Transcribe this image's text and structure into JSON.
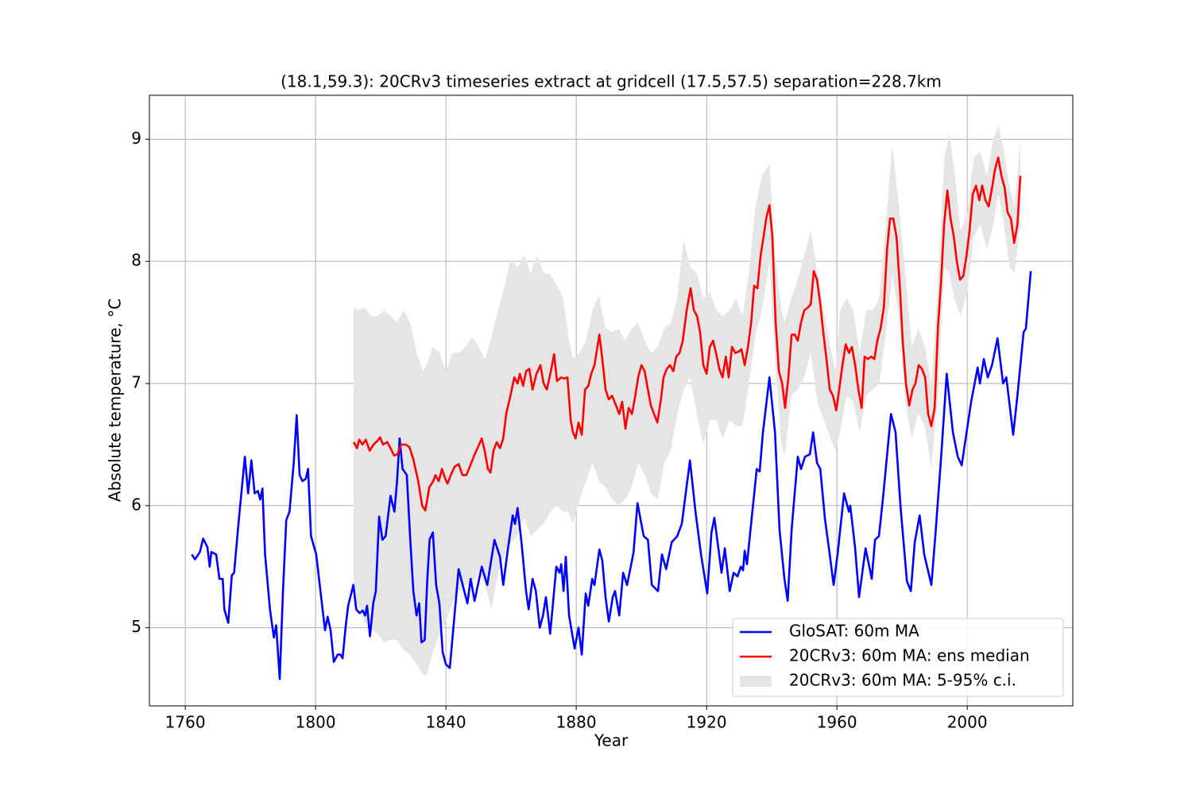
{
  "chart_data": {
    "type": "line",
    "title": "(18.1,59.3): 20CRv3 timeseries extract at gridcell (17.5,57.5) separation=228.7km",
    "xlabel": "Year",
    "ylabel": "Absolute temperature, °C",
    "xlim": [
      1749,
      2032.4
    ],
    "ylim": [
      4.36,
      9.36
    ],
    "xticks": [
      1760,
      1800,
      1840,
      1880,
      1920,
      1960,
      2000
    ],
    "yticks": [
      5,
      6,
      7,
      8,
      9
    ],
    "grid": true,
    "legend": "lower right",
    "series": [
      {
        "name": "GloSAT: 60m MA",
        "color": "#0000ff",
        "x": [
          1762,
          1763,
          1764.5,
          1765.5,
          1766.8,
          1767.5,
          1768,
          1769.5,
          1770.5,
          1771.5,
          1772,
          1773.2,
          1774.3,
          1775,
          1776.5,
          1778.3,
          1779.3,
          1780.3,
          1781.3,
          1782.3,
          1783,
          1783.7,
          1784.5,
          1786,
          1787.2,
          1787.9,
          1789,
          1790,
          1791,
          1792,
          1793.3,
          1794.2,
          1795.1,
          1796,
          1797,
          1797.7,
          1798.6,
          1800.2,
          1801.5,
          1802.9,
          1803.7,
          1804.6,
          1805.6,
          1806.8,
          1807.6,
          1808.3,
          1809.2,
          1810,
          1811.6,
          1812.5,
          1813.5,
          1814.5,
          1815.2,
          1815.8,
          1816.7,
          1817.7,
          1818.5,
          1819.5,
          1820.5,
          1821.5,
          1823,
          1824.2,
          1825,
          1825.8,
          1826.7,
          1828,
          1829,
          1830,
          1831,
          1831.8,
          1832.5,
          1833.5,
          1834.3,
          1835,
          1836,
          1837,
          1838,
          1839,
          1840,
          1841.2,
          1843.9,
          1846.6,
          1847.6,
          1848.8,
          1851.0,
          1852.7,
          1854.9,
          1856.6,
          1857.6,
          1858.8,
          1860.5,
          1861.2,
          1862.0,
          1863.2,
          1864.6,
          1865.4,
          1866.6,
          1867.6,
          1868.8,
          1869.8,
          1870.7,
          1872.0,
          1873.9,
          1874.9,
          1875.4,
          1876.1,
          1876.8,
          1877.8,
          1879.5,
          1880.7,
          1881.7,
          1882.9,
          1883.7,
          1884.9,
          1885.6,
          1887.1,
          1888.0,
          1889.0,
          1890.0,
          1891.2,
          1891.9,
          1893.2,
          1894.4,
          1895.6,
          1897.1,
          1897.6,
          1898.8,
          1900.7,
          1902.0,
          1903.2,
          1905.1,
          1906.3,
          1907.6,
          1909.3,
          1911.0,
          1912.4,
          1914.9,
          1916.6,
          1918.3,
          1920.2,
          1921.5,
          1922.4,
          1924.6,
          1925.6,
          1927.1,
          1928.3,
          1929.5,
          1930.5,
          1931.2,
          1931.7,
          1932.4,
          1935.4,
          1936.3,
          1937.3,
          1939.3,
          1941.0,
          1942.4,
          1943.9,
          1944.9,
          1946.1,
          1948.0,
          1949.0,
          1950.2,
          1951.7,
          1952.7,
          1953.9,
          1954.9,
          1956.3,
          1957.8,
          1959.0,
          1960.2,
          1962.2,
          1963.7,
          1964.1,
          1965.6,
          1966.8,
          1968.8,
          1970.7,
          1971.7,
          1972.9,
          1974.1,
          1976.6,
          1978.0,
          1979.5,
          1981.5,
          1982.7,
          1983.9,
          1985.4,
          1986.8,
          1989.0,
          1990.2,
          1992.0,
          1993.7,
          1995.6,
          1997.1,
          1998.3,
          2001.2,
          2003.2,
          2003.9,
          2005.1,
          2006.3,
          2007.6,
          2009.3,
          2011.0,
          2012.0,
          2014.1,
          2015.4,
          2017.3,
          2018.0,
          2019.5
        ],
        "values": [
          5.6,
          5.56,
          5.62,
          5.73,
          5.66,
          5.5,
          5.62,
          5.6,
          5.4,
          5.4,
          5.15,
          5.04,
          5.43,
          5.45,
          5.9,
          6.4,
          6.1,
          6.37,
          6.1,
          6.12,
          6.05,
          6.14,
          5.6,
          5.15,
          4.92,
          5.02,
          4.58,
          5.3,
          5.88,
          5.95,
          6.35,
          6.74,
          6.25,
          6.2,
          6.22,
          6.3,
          5.75,
          5.6,
          5.3,
          4.98,
          5.09,
          4.98,
          4.72,
          4.78,
          4.78,
          4.75,
          5.0,
          5.18,
          5.35,
          5.15,
          5.12,
          5.14,
          5.1,
          5.18,
          4.93,
          5.2,
          5.3,
          5.91,
          5.72,
          5.75,
          6.08,
          5.95,
          6.2,
          6.55,
          6.3,
          6.25,
          5.75,
          5.3,
          5.1,
          5.2,
          4.88,
          4.9,
          5.4,
          5.72,
          5.78,
          5.35,
          5.2,
          4.8,
          4.7,
          4.67,
          5.48,
          5.2,
          5.4,
          5.22,
          5.5,
          5.35,
          5.72,
          5.58,
          5.35,
          5.6,
          5.92,
          5.85,
          5.98,
          5.7,
          5.3,
          5.15,
          5.4,
          5.3,
          5.0,
          5.1,
          5.25,
          4.95,
          5.5,
          5.45,
          5.52,
          5.3,
          5.58,
          5.1,
          4.83,
          5.0,
          4.78,
          5.28,
          5.18,
          5.4,
          5.35,
          5.64,
          5.55,
          5.25,
          5.05,
          5.25,
          5.3,
          5.1,
          5.45,
          5.35,
          5.55,
          5.62,
          6.02,
          5.75,
          5.72,
          5.35,
          5.3,
          5.6,
          5.48,
          5.7,
          5.75,
          5.85,
          6.37,
          5.95,
          5.6,
          5.28,
          5.78,
          5.9,
          5.45,
          5.65,
          5.3,
          5.45,
          5.42,
          5.5,
          5.47,
          5.63,
          5.52,
          6.3,
          6.28,
          6.6,
          7.05,
          6.6,
          5.8,
          5.4,
          5.22,
          5.8,
          6.4,
          6.3,
          6.4,
          6.42,
          6.6,
          6.35,
          6.3,
          5.9,
          5.6,
          5.35,
          5.6,
          6.1,
          5.95,
          6.0,
          5.65,
          5.25,
          5.65,
          5.4,
          5.72,
          5.75,
          6.05,
          6.75,
          6.6,
          6.0,
          5.38,
          5.3,
          5.7,
          5.92,
          5.6,
          5.35,
          5.75,
          6.4,
          7.08,
          6.6,
          6.4,
          6.33,
          6.85,
          7.13,
          7.0,
          7.2,
          7.05,
          7.15,
          7.37,
          7.0,
          7.05,
          6.58,
          6.9,
          7.42,
          7.45,
          7.92
        ]
      },
      {
        "name": "20CRv3: 60m MA: ens median",
        "color": "#ff0000",
        "x": [
          1811.7,
          1812.7,
          1813.4,
          1814.4,
          1815.4,
          1816.6,
          1817.8,
          1819.0,
          1819.8,
          1820.7,
          1822.0,
          1823.2,
          1824.1,
          1825.1,
          1826.3,
          1827.6,
          1828.8,
          1830.0,
          1831.5,
          1832.7,
          1833.7,
          1834.9,
          1836.1,
          1836.8,
          1837.8,
          1838.8,
          1839.8,
          1840.5,
          1841.5,
          1842.7,
          1843.9,
          1845.1,
          1846.3,
          1847.8,
          1849.0,
          1850.2,
          1851.0,
          1851.9,
          1852.9,
          1853.7,
          1854.6,
          1855.6,
          1856.6,
          1857.6,
          1858.5,
          1859.8,
          1861.0,
          1862.0,
          1862.7,
          1863.7,
          1864.6,
          1865.6,
          1866.6,
          1867.8,
          1869.0,
          1870.0,
          1871.0,
          1872.2,
          1873.2,
          1874.1,
          1875.4,
          1876.3,
          1877.3,
          1878.3,
          1879.0,
          1879.8,
          1880.7,
          1881.7,
          1882.7,
          1883.7,
          1884.6,
          1885.6,
          1887.1,
          1888.0,
          1889.0,
          1890.0,
          1891.0,
          1892.2,
          1893.2,
          1894.1,
          1895.1,
          1896.1,
          1897.1,
          1898.0,
          1899.0,
          1900.0,
          1901.0,
          1902.0,
          1902.9,
          1903.9,
          1904.9,
          1905.9,
          1906.8,
          1907.8,
          1908.8,
          1909.8,
          1910.7,
          1911.7,
          1912.7,
          1913.9,
          1915.1,
          1916.1,
          1917.1,
          1918.0,
          1919.0,
          1920.0,
          1921.0,
          1922.0,
          1922.9,
          1923.9,
          1924.9,
          1925.9,
          1926.8,
          1927.8,
          1928.8,
          1929.8,
          1930.7,
          1931.7,
          1932.7,
          1933.7,
          1934.6,
          1935.6,
          1936.6,
          1937.6,
          1938.3,
          1939.3,
          1940.2,
          1941.2,
          1942.2,
          1943.2,
          1944.1,
          1945.1,
          1946.1,
          1947.1,
          1948.0,
          1949.0,
          1950.0,
          1951.0,
          1952.0,
          1952.9,
          1953.9,
          1954.9,
          1955.9,
          1956.8,
          1957.8,
          1958.8,
          1959.8,
          1960.7,
          1961.7,
          1962.7,
          1963.7,
          1964.6,
          1965.6,
          1966.6,
          1967.6,
          1968.5,
          1969.5,
          1970.5,
          1971.5,
          1972.4,
          1973.4,
          1974.4,
          1975.4,
          1976.3,
          1977.3,
          1978.3,
          1979.3,
          1980.2,
          1981.2,
          1982.2,
          1983.2,
          1984.1,
          1985.1,
          1986.1,
          1987.1,
          1988.0,
          1989.0,
          1990.0,
          1991.0,
          1992.0,
          1992.9,
          1993.9,
          1994.9,
          1995.9,
          1996.8,
          1997.8,
          1998.8,
          1999.8,
          2000.7,
          2001.7,
          2002.7,
          2003.7,
          2004.6,
          2005.6,
          2006.6,
          2007.6,
          2008.5,
          2009.5,
          2010.5,
          2011.5,
          2012.4,
          2013.4,
          2014.4,
          2015.4,
          2016.3
        ],
        "values": [
          6.52,
          6.47,
          6.54,
          6.5,
          6.54,
          6.45,
          6.5,
          6.53,
          6.56,
          6.5,
          6.52,
          6.46,
          6.41,
          6.42,
          6.5,
          6.5,
          6.48,
          6.38,
          6.2,
          6.0,
          5.96,
          6.15,
          6.2,
          6.25,
          6.2,
          6.3,
          6.22,
          6.18,
          6.25,
          6.32,
          6.34,
          6.25,
          6.25,
          6.35,
          6.43,
          6.5,
          6.55,
          6.45,
          6.3,
          6.27,
          6.45,
          6.52,
          6.47,
          6.55,
          6.75,
          6.9,
          7.05,
          7.0,
          7.08,
          6.98,
          7.1,
          7.12,
          6.95,
          7.08,
          7.15,
          7.0,
          6.95,
          7.1,
          7.24,
          7.02,
          7.05,
          7.04,
          7.05,
          6.7,
          6.6,
          6.55,
          6.68,
          6.58,
          6.95,
          6.98,
          7.08,
          7.15,
          7.4,
          7.2,
          6.95,
          6.87,
          6.9,
          6.82,
          6.75,
          6.85,
          6.63,
          6.8,
          6.75,
          6.88,
          7.05,
          7.15,
          7.1,
          6.95,
          6.82,
          6.75,
          6.68,
          6.85,
          7.05,
          7.12,
          7.15,
          7.1,
          7.22,
          7.25,
          7.35,
          7.6,
          7.78,
          7.6,
          7.55,
          7.42,
          7.15,
          7.08,
          7.3,
          7.35,
          7.25,
          7.12,
          7.05,
          7.22,
          7.05,
          7.3,
          7.25,
          7.26,
          7.28,
          7.15,
          7.3,
          7.5,
          7.8,
          7.78,
          8.05,
          8.22,
          8.35,
          8.46,
          8.2,
          7.5,
          7.1,
          7.0,
          6.8,
          7.05,
          7.4,
          7.4,
          7.35,
          7.5,
          7.6,
          7.62,
          7.65,
          7.92,
          7.85,
          7.65,
          7.4,
          7.2,
          6.95,
          6.9,
          6.78,
          6.95,
          7.15,
          7.32,
          7.25,
          7.3,
          7.15,
          6.95,
          6.8,
          7.22,
          7.2,
          7.22,
          7.2,
          7.35,
          7.45,
          7.62,
          8.1,
          8.35,
          8.35,
          8.2,
          7.8,
          7.35,
          7.0,
          6.82,
          6.95,
          7.0,
          7.15,
          7.12,
          7.05,
          6.75,
          6.65,
          6.8,
          7.45,
          7.85,
          8.3,
          8.58,
          8.35,
          8.2,
          8.0,
          7.85,
          7.88,
          8.05,
          8.25,
          8.55,
          8.62,
          8.5,
          8.62,
          8.5,
          8.45,
          8.6,
          8.75,
          8.85,
          8.7,
          8.6,
          8.4,
          8.35,
          8.15,
          8.3,
          8.7
        ]
      },
      {
        "name": "20CRv3: 60m MA: 5-95% c.i.",
        "color": "#e5e5e5",
        "kind": "band",
        "x": [
          1811.7,
          1813,
          1815,
          1817,
          1819,
          1821,
          1823,
          1825,
          1827,
          1829,
          1831,
          1833,
          1834,
          1836,
          1838,
          1840,
          1842,
          1844,
          1846,
          1848,
          1850,
          1852,
          1854,
          1856,
          1858,
          1860,
          1862,
          1864,
          1866,
          1868,
          1870,
          1872,
          1874,
          1876,
          1877.5,
          1879,
          1881,
          1883,
          1885,
          1887,
          1889,
          1891,
          1893,
          1895,
          1897,
          1899,
          1901,
          1903,
          1905,
          1907,
          1909,
          1911,
          1913,
          1915,
          1917,
          1919,
          1921,
          1923,
          1925,
          1927,
          1929,
          1931,
          1933,
          1935,
          1937,
          1939.3,
          1941,
          1943,
          1944,
          1946,
          1948,
          1950,
          1952,
          1954,
          1956,
          1958,
          1959.5,
          1961,
          1963,
          1965,
          1967,
          1969,
          1971,
          1973,
          1975,
          1977,
          1979,
          1981,
          1983,
          1985,
          1987,
          1989,
          1991,
          1993,
          1994.5,
          1996,
          1998,
          2000,
          2002,
          2004,
          2006,
          2008,
          2009.5,
          2011,
          2013,
          2014.5,
          2016.3
        ],
        "low": [
          5.15,
          5.2,
          5.05,
          5.0,
          4.95,
          4.88,
          4.9,
          4.9,
          4.82,
          4.78,
          4.7,
          4.62,
          4.6,
          4.8,
          4.95,
          5.05,
          5.2,
          5.3,
          5.35,
          5.35,
          5.45,
          5.35,
          5.15,
          5.45,
          5.6,
          5.7,
          5.75,
          5.9,
          5.75,
          5.8,
          5.85,
          5.95,
          6.0,
          5.95,
          5.95,
          5.85,
          6.05,
          6.2,
          6.35,
          6.2,
          6.15,
          6.05,
          6.0,
          6.05,
          6.15,
          6.35,
          6.25,
          6.1,
          6.05,
          6.35,
          6.45,
          6.75,
          6.95,
          7.05,
          6.75,
          6.5,
          6.7,
          6.7,
          6.55,
          6.7,
          6.65,
          6.65,
          7.0,
          7.4,
          7.6,
          8.0,
          7.2,
          6.5,
          6.4,
          6.9,
          6.95,
          7.05,
          7.25,
          6.85,
          6.7,
          6.55,
          6.45,
          6.6,
          6.9,
          6.85,
          6.6,
          6.9,
          6.95,
          7.0,
          7.4,
          7.9,
          7.55,
          6.85,
          6.55,
          6.75,
          6.65,
          6.3,
          6.9,
          7.95,
          7.9,
          7.7,
          7.55,
          7.75,
          8.2,
          8.3,
          8.1,
          8.3,
          8.55,
          8.35,
          7.95,
          7.9,
          8.3
        ],
        "high": [
          7.62,
          7.6,
          7.62,
          7.55,
          7.55,
          7.6,
          7.55,
          7.5,
          7.6,
          7.5,
          7.25,
          7.1,
          7.15,
          7.3,
          7.25,
          7.1,
          7.25,
          7.25,
          7.3,
          7.38,
          7.3,
          7.2,
          7.38,
          7.6,
          7.8,
          8.02,
          7.95,
          8.05,
          7.9,
          8.05,
          7.9,
          7.9,
          7.8,
          7.7,
          7.4,
          7.2,
          7.25,
          7.35,
          7.6,
          7.72,
          7.45,
          7.42,
          7.45,
          7.35,
          7.45,
          7.5,
          7.35,
          7.25,
          7.3,
          7.45,
          7.5,
          7.7,
          8.18,
          7.95,
          7.9,
          7.7,
          7.75,
          7.6,
          7.55,
          7.6,
          7.7,
          7.55,
          7.9,
          8.45,
          8.7,
          8.8,
          8.05,
          7.6,
          7.5,
          7.7,
          7.85,
          8.05,
          8.25,
          7.9,
          7.6,
          7.3,
          7.1,
          7.6,
          7.7,
          7.6,
          7.25,
          7.6,
          7.6,
          7.7,
          8.3,
          8.95,
          8.45,
          7.9,
          7.3,
          7.45,
          7.3,
          7.0,
          7.8,
          8.85,
          9.05,
          8.75,
          8.25,
          8.4,
          8.85,
          8.9,
          8.7,
          9.0,
          9.12,
          8.95,
          8.6,
          8.45,
          8.98
        ]
      }
    ]
  }
}
